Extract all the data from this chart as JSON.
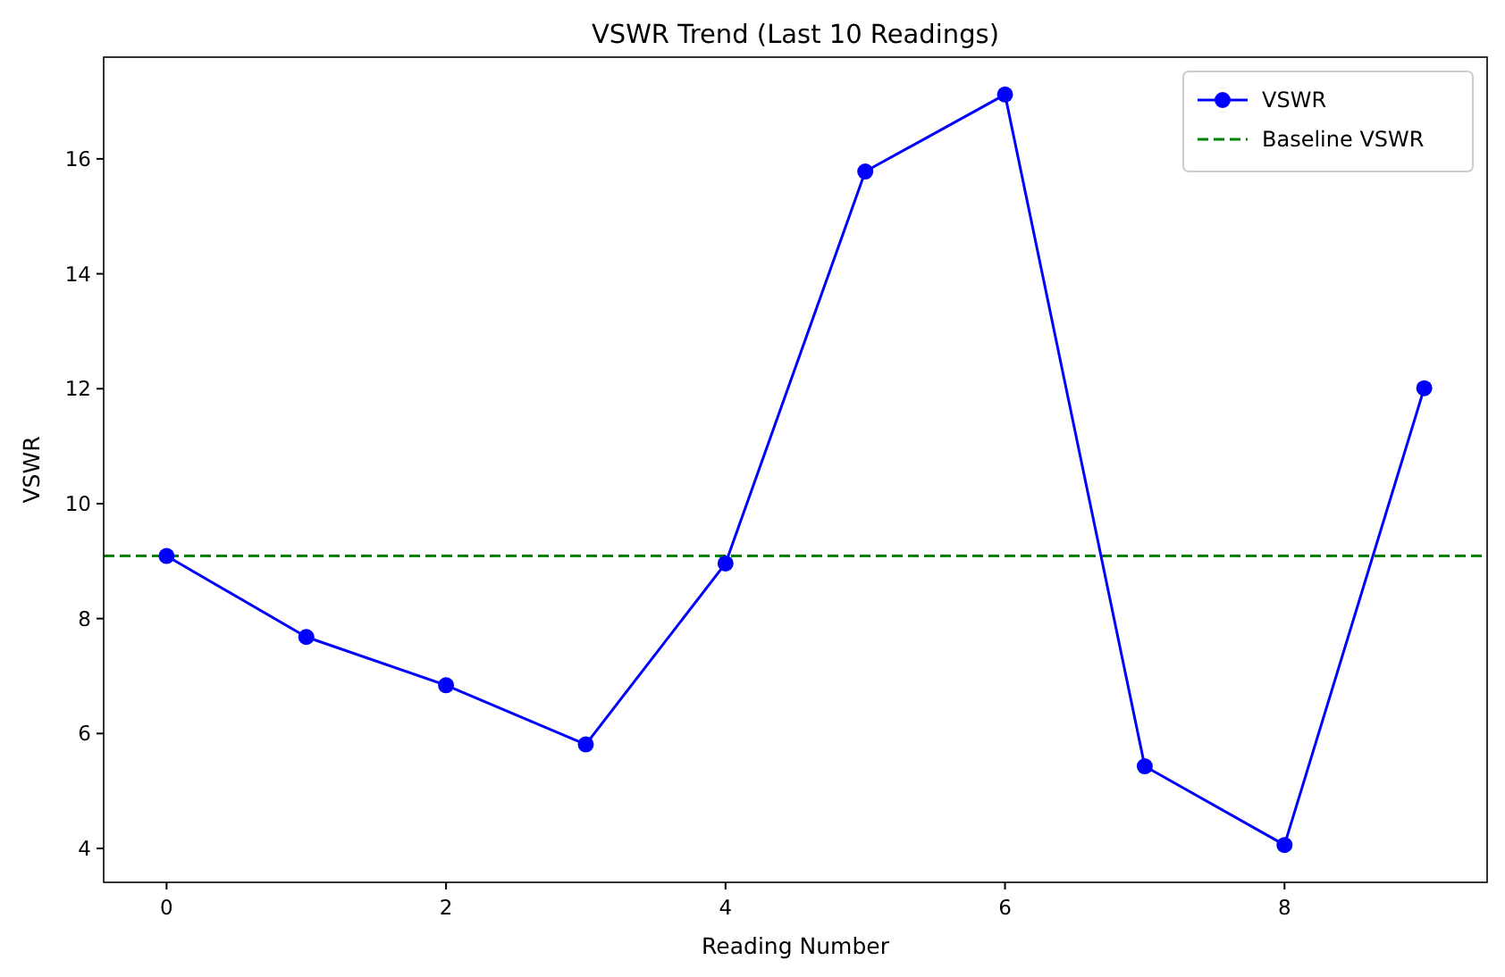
{
  "chart_data": {
    "type": "line",
    "title": "VSWR Trend (Last 10 Readings)",
    "xlabel": "Reading Number",
    "ylabel": "VSWR",
    "x": [
      0,
      1,
      2,
      3,
      4,
      5,
      6,
      7,
      8,
      9
    ],
    "series": [
      {
        "name": "VSWR",
        "color": "#0000ff",
        "values": [
          9.09,
          7.68,
          6.84,
          5.81,
          8.96,
          15.78,
          17.12,
          5.43,
          4.06,
          12.01
        ]
      }
    ],
    "xlim": [
      -0.45,
      9.45
    ],
    "xticks": [
      0,
      2,
      4,
      6,
      8
    ],
    "ylim": [
      3.41,
      17.77
    ],
    "yticks": [
      4,
      6,
      8,
      10,
      12,
      14,
      16
    ],
    "ref_lines": [
      {
        "axis": "y",
        "value": 9.09,
        "label": "Baseline VSWR",
        "color": "#008000",
        "line_style": "dashed"
      }
    ],
    "marker": "circle",
    "line_style": "solid",
    "legend": "top right",
    "grid": false
  }
}
